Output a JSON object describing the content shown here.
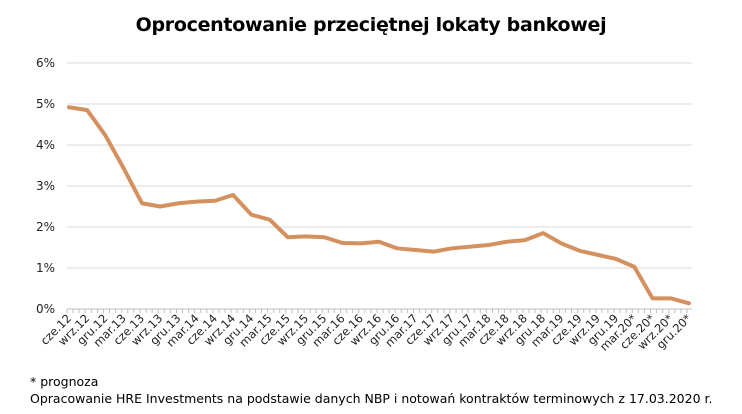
{
  "chart_data": {
    "type": "line",
    "title": "Oprocentowanie przeciętnej lokaty bankowej",
    "xlabel": "",
    "ylabel": "",
    "ylim": [
      0,
      6
    ],
    "yticks": [
      "0%",
      "1%",
      "2%",
      "3%",
      "4%",
      "5%",
      "6%"
    ],
    "grid": true,
    "categories": [
      "cze.12",
      "wrz.12",
      "gru.12",
      "mar.13",
      "cze.13",
      "wrz.13",
      "gru.13",
      "mar.14",
      "cze.14",
      "wrz.14",
      "gru.14",
      "mar.15",
      "cze.15",
      "wrz.15",
      "gru.15",
      "mar.16",
      "cze.16",
      "wrz.16",
      "gru.16",
      "mar.17",
      "cze.17",
      "wrz.17",
      "gru.17",
      "mar.18",
      "cze.18",
      "wrz.18",
      "gru.18",
      "mar.19",
      "cze.19",
      "wrz.19",
      "gru.19",
      "mar.20*",
      "cze.20*",
      "wrz.20*",
      "gru.20*"
    ],
    "series": [
      {
        "name": "Oprocentowanie",
        "color": "#D4915F",
        "values": [
          4.92,
          4.85,
          4.23,
          3.43,
          2.58,
          2.5,
          2.58,
          2.62,
          2.64,
          2.78,
          2.3,
          2.18,
          1.75,
          1.77,
          1.75,
          1.61,
          1.6,
          1.64,
          1.48,
          1.44,
          1.4,
          1.48,
          1.52,
          1.56,
          1.64,
          1.68,
          1.85,
          1.6,
          1.42,
          1.32,
          1.22,
          1.03,
          0.26,
          0.26,
          0.14
        ]
      }
    ]
  },
  "footnotes": {
    "forecast": "* prognoza",
    "source": "Opracowanie HRE Investments na podstawie danych NBP i notowań kontraktów terminowych z 17.03.2020 r."
  }
}
